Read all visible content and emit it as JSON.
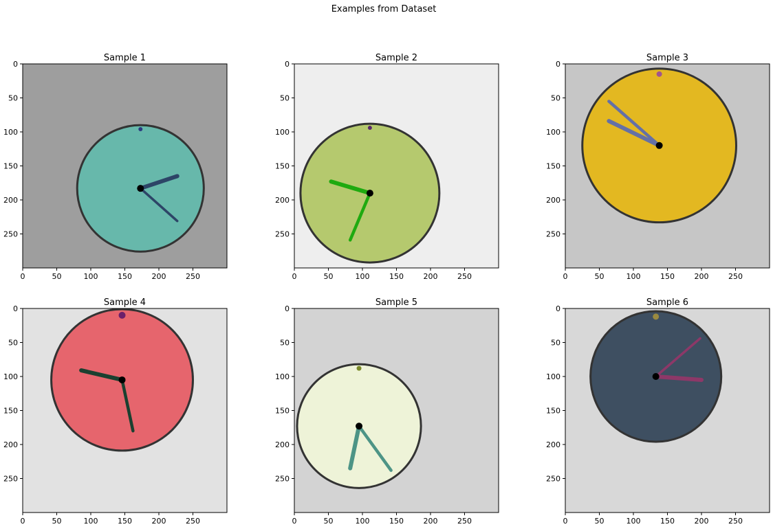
{
  "figure": {
    "suptitle": "Examples from Dataset"
  },
  "chart_data": [
    {
      "type": "image",
      "title": "Sample 1",
      "xlim": [
        0,
        300
      ],
      "ylim": [
        300,
        0
      ],
      "xticks": [
        0,
        50,
        100,
        150,
        200,
        250
      ],
      "yticks": [
        0,
        50,
        100,
        150,
        200,
        250
      ],
      "background": "#9e9e9e",
      "clock": {
        "center": [
          173,
          183
        ],
        "radius": 93,
        "face_color": "#67b8ab",
        "rim_color": "#333333",
        "marker": {
          "at": [
            173,
            96
          ],
          "color": "#2b3a80",
          "r": 3
        },
        "hands": [
          {
            "to": [
              227,
              165
            ],
            "color": "#2d4567",
            "width": 6
          },
          {
            "to": [
              227,
              231
            ],
            "color": "#2d4567",
            "width": 3.5
          }
        ]
      }
    },
    {
      "type": "image",
      "title": "Sample 2",
      "xlim": [
        0,
        300
      ],
      "ylim": [
        300,
        0
      ],
      "xticks": [
        0,
        50,
        100,
        150,
        200,
        250
      ],
      "yticks": [
        0,
        50,
        100,
        150,
        200,
        250
      ],
      "background": "#eeeeee",
      "clock": {
        "center": [
          111,
          190
        ],
        "radius": 102,
        "face_color": "#b5c96e",
        "rim_color": "#333333",
        "marker": {
          "at": [
            111,
            94
          ],
          "color": "#5a2a6a",
          "r": 3
        },
        "hands": [
          {
            "to": [
              54,
              173
            ],
            "color": "#1faa10",
            "width": 6
          },
          {
            "to": [
              82,
              259
            ],
            "color": "#1faa10",
            "width": 4.5
          }
        ]
      }
    },
    {
      "type": "image",
      "title": "Sample 3",
      "xlim": [
        0,
        300
      ],
      "ylim": [
        300,
        0
      ],
      "xticks": [
        0,
        50,
        100,
        150,
        200,
        250
      ],
      "yticks": [
        0,
        50,
        100,
        150,
        200,
        250
      ],
      "background": "#c6c6c6",
      "clock": {
        "center": [
          138,
          120
        ],
        "radius": 113,
        "face_color": "#e3b821",
        "rim_color": "#333333",
        "marker": {
          "at": [
            138,
            15
          ],
          "color": "#a0558e",
          "r": 4
        },
        "hands": [
          {
            "to": [
              64,
              84
            ],
            "color": "#6470a6",
            "width": 6
          },
          {
            "to": [
              64,
              55
            ],
            "color": "#6470a6",
            "width": 4.5
          }
        ]
      }
    },
    {
      "type": "image",
      "title": "Sample 4",
      "xlim": [
        0,
        300
      ],
      "ylim": [
        300,
        0
      ],
      "xticks": [
        0,
        50,
        100,
        150,
        200,
        250
      ],
      "yticks": [
        0,
        50,
        100,
        150,
        200,
        250
      ],
      "background": "#e2e2e2",
      "clock": {
        "center": [
          146,
          105
        ],
        "radius": 104,
        "face_color": "#e6656d",
        "rim_color": "#333333",
        "marker": {
          "at": [
            146,
            10
          ],
          "color": "#6b1f6a",
          "r": 5
        },
        "hands": [
          {
            "to": [
              86,
              91
            ],
            "color": "#1b4030",
            "width": 6
          },
          {
            "to": [
              162,
              180
            ],
            "color": "#1b4030",
            "width": 4.5
          }
        ]
      }
    },
    {
      "type": "image",
      "title": "Sample 5",
      "xlim": [
        0,
        300
      ],
      "ylim": [
        300,
        0
      ],
      "xticks": [
        0,
        50,
        100,
        150,
        200,
        250
      ],
      "yticks": [
        0,
        50,
        100,
        150,
        200,
        250
      ],
      "background": "#d3d3d3",
      "clock": {
        "center": [
          95,
          173
        ],
        "radius": 91,
        "face_color": "#eef3d8",
        "rim_color": "#333333",
        "marker": {
          "at": [
            95,
            88
          ],
          "color": "#7b8a2a",
          "r": 3.5
        },
        "hands": [
          {
            "to": [
              82,
              235
            ],
            "color": "#4d9486",
            "width": 6
          },
          {
            "to": [
              142,
              238
            ],
            "color": "#4d9486",
            "width": 4.5
          }
        ]
      }
    },
    {
      "type": "image",
      "title": "Sample 6",
      "xlim": [
        0,
        300
      ],
      "ylim": [
        300,
        0
      ],
      "xticks": [
        0,
        50,
        100,
        150,
        200,
        250
      ],
      "yticks": [
        0,
        50,
        100,
        150,
        200,
        250
      ],
      "background": "#d8d8d8",
      "clock": {
        "center": [
          133,
          100
        ],
        "radius": 96,
        "face_color": "#3e4f61",
        "rim_color": "#333333",
        "marker": {
          "at": [
            133,
            12
          ],
          "color": "#9a8a40",
          "r": 4.5
        },
        "hands": [
          {
            "to": [
              200,
              105
            ],
            "color": "#8d3868",
            "width": 6
          },
          {
            "to": [
              198,
              44
            ],
            "color": "#8d3868",
            "width": 3.5
          }
        ]
      }
    }
  ]
}
